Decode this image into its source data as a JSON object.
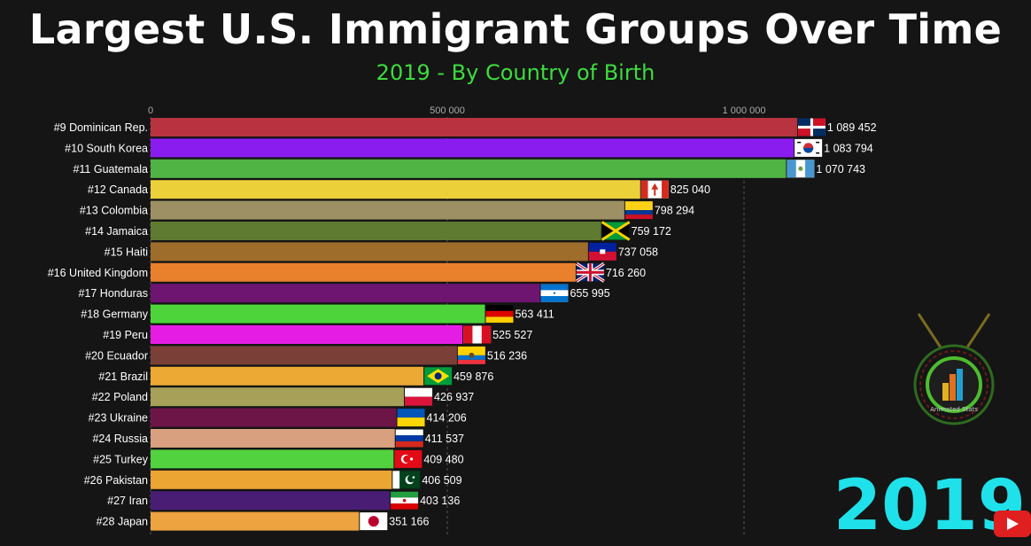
{
  "title": "Largest U.S. Immigrant Groups Over Time",
  "subtitle": "2019 - By Country of Birth",
  "year_label": "2019",
  "logo_text": "Animated Stats",
  "colors": {
    "background": "#151515",
    "title": "#ffffff",
    "subtitle": "#3ddc3d",
    "year": "#1fe1ea"
  },
  "chart_data": {
    "type": "bar",
    "orientation": "horizontal",
    "xlim": [
      0,
      1500000
    ],
    "ticks": [
      {
        "value": 0,
        "label": "0"
      },
      {
        "value": 500000,
        "label": "500 000"
      },
      {
        "value": 1000000,
        "label": "1 000 000"
      }
    ],
    "categories": [
      "#9 Dominican Rep.",
      "#10 South Korea",
      "#11 Guatemala",
      "#12 Canada",
      "#13 Colombia",
      "#14 Jamaica",
      "#15 Haiti",
      "#16 United Kingdom",
      "#17 Honduras",
      "#18 Germany",
      "#19 Peru",
      "#20 Ecuador",
      "#21 Brazil",
      "#22 Poland",
      "#23 Ukraine",
      "#24 Russia",
      "#25 Turkey",
      "#26 Pakistan",
      "#27 Iran",
      "#28 Japan"
    ],
    "values": [
      1089452,
      1083794,
      1070743,
      825040,
      798294,
      759172,
      737058,
      716260,
      655995,
      563411,
      525527,
      516236,
      459876,
      426937,
      414206,
      411537,
      409480,
      406509,
      403136,
      351166
    ],
    "value_labels": [
      "1 089 452",
      "1 083 794",
      "1 070 743",
      "825 040",
      "798 294",
      "759 172",
      "737 058",
      "716 260",
      "655 995",
      "563 411",
      "525 527",
      "516 236",
      "459 876",
      "426 937",
      "414 206",
      "411 537",
      "409 480",
      "406 509",
      "403 136",
      "351 166"
    ],
    "bar_colors": [
      "#b8333f",
      "#8a1cf0",
      "#4fb444",
      "#ecd03a",
      "#9c9064",
      "#5f7a31",
      "#9e6d2b",
      "#e8802c",
      "#6d1570",
      "#4dd43a",
      "#e51ce3",
      "#7a4038",
      "#eca934",
      "#a6a058",
      "#6e1548",
      "#d8a07e",
      "#52d23e",
      "#eaa532",
      "#4a1d74",
      "#eda340"
    ],
    "flags": [
      "dominican-republic",
      "south-korea",
      "guatemala",
      "canada",
      "colombia",
      "jamaica",
      "haiti",
      "united-kingdom",
      "honduras",
      "germany",
      "peru",
      "ecuador",
      "brazil",
      "poland",
      "ukraine",
      "russia",
      "turkey",
      "pakistan",
      "iran",
      "japan"
    ]
  }
}
